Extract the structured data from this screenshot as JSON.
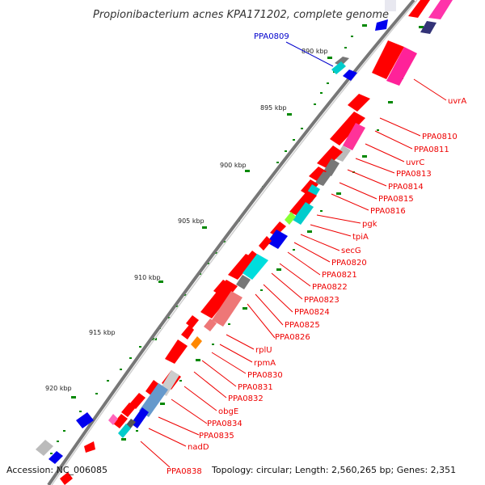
{
  "title": "Propionibacterium acnes KPA171202, complete genome",
  "footer": {
    "accession": "Accession: NC_006085",
    "summary": "Topology: circular; Length: 2,560,265 bp; Genes: 2,351"
  },
  "colors": {
    "backbone": "#808080",
    "cds": "#ff0000",
    "label": "#ee0000",
    "blue_label": "#0000cc",
    "dots": "#008800"
  },
  "kbp_ticks": [
    "890 kbp",
    "895 kbp",
    "900 kbp",
    "905 kbp",
    "910 kbp",
    "915 kbp",
    "920 kbp"
  ],
  "gene_labels": [
    {
      "text": "PPA0809",
      "color": "blue"
    },
    {
      "text": "uvrA"
    },
    {
      "text": "PPA0810"
    },
    {
      "text": "PPA0811"
    },
    {
      "text": "uvrC"
    },
    {
      "text": "PPA0813"
    },
    {
      "text": "PPA0814"
    },
    {
      "text": "PPA0815"
    },
    {
      "text": "PPA0816"
    },
    {
      "text": "pgk"
    },
    {
      "text": "tpiA"
    },
    {
      "text": "secG"
    },
    {
      "text": "PPA0820"
    },
    {
      "text": "PPA0821"
    },
    {
      "text": "PPA0822"
    },
    {
      "text": "PPA0823"
    },
    {
      "text": "PPA0824"
    },
    {
      "text": "PPA0825"
    },
    {
      "text": "PPA0826"
    },
    {
      "text": "rplU"
    },
    {
      "text": "rpmA"
    },
    {
      "text": "PPA0830"
    },
    {
      "text": "PPA0831"
    },
    {
      "text": "PPA0832"
    },
    {
      "text": "obgE"
    },
    {
      "text": "PPA0834"
    },
    {
      "text": "PPA0835"
    },
    {
      "text": "nadD"
    },
    {
      "text": "PPA0838"
    }
  ]
}
